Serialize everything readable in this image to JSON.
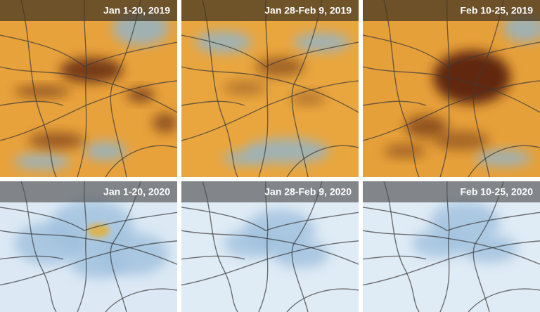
{
  "panels": [
    {
      "label": "Jan 1-20, 2019"
    },
    {
      "label": "Jan 28-Feb 9, 2019"
    },
    {
      "label": "Feb 10-25, 2019"
    },
    {
      "label": "Jan 1-20, 2020"
    },
    {
      "label": "Jan 28-Feb 9, 2020"
    },
    {
      "label": "Feb 10-25, 2020"
    }
  ]
}
